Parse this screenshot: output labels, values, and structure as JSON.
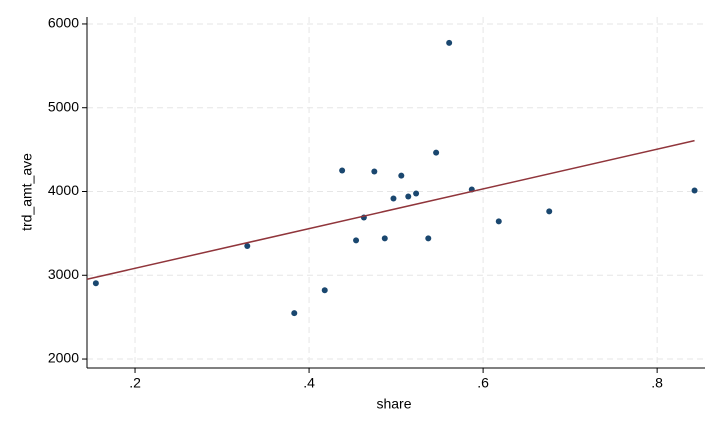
{
  "chart_data": {
    "type": "scatter",
    "x_label": "share",
    "y_label": "trd_amt_ave",
    "xlim": [
      0.1448,
      0.855
    ],
    "ylim": [
      1893,
      6083
    ],
    "xticks": [
      {
        "value": 0.2,
        "label": ".2"
      },
      {
        "value": 0.4,
        "label": ".4"
      },
      {
        "value": 0.6,
        "label": ".6"
      },
      {
        "value": 0.8,
        "label": ".8"
      }
    ],
    "yticks": [
      2000,
      3000,
      4000,
      5000,
      6000
    ],
    "grid": true,
    "series": [
      {
        "type": "scatter",
        "color": "#1a476f",
        "x": [
          0.155,
          0.329,
          0.383,
          0.418,
          0.438,
          0.454,
          0.463,
          0.475,
          0.487,
          0.497,
          0.506,
          0.514,
          0.523,
          0.537,
          0.546,
          0.561,
          0.587,
          0.618,
          0.676,
          0.843
        ],
        "values": [
          2905,
          3350,
          2548,
          2821,
          4250,
          3417,
          3690,
          4238,
          3440,
          3917,
          4190,
          3940,
          3976,
          3440,
          4464,
          5774,
          4024,
          3643,
          3762,
          4012
        ]
      },
      {
        "type": "line",
        "color": "#90353b",
        "x": [
          0.1448,
          0.843
        ],
        "values": [
          2952,
          4607
        ]
      }
    ]
  }
}
